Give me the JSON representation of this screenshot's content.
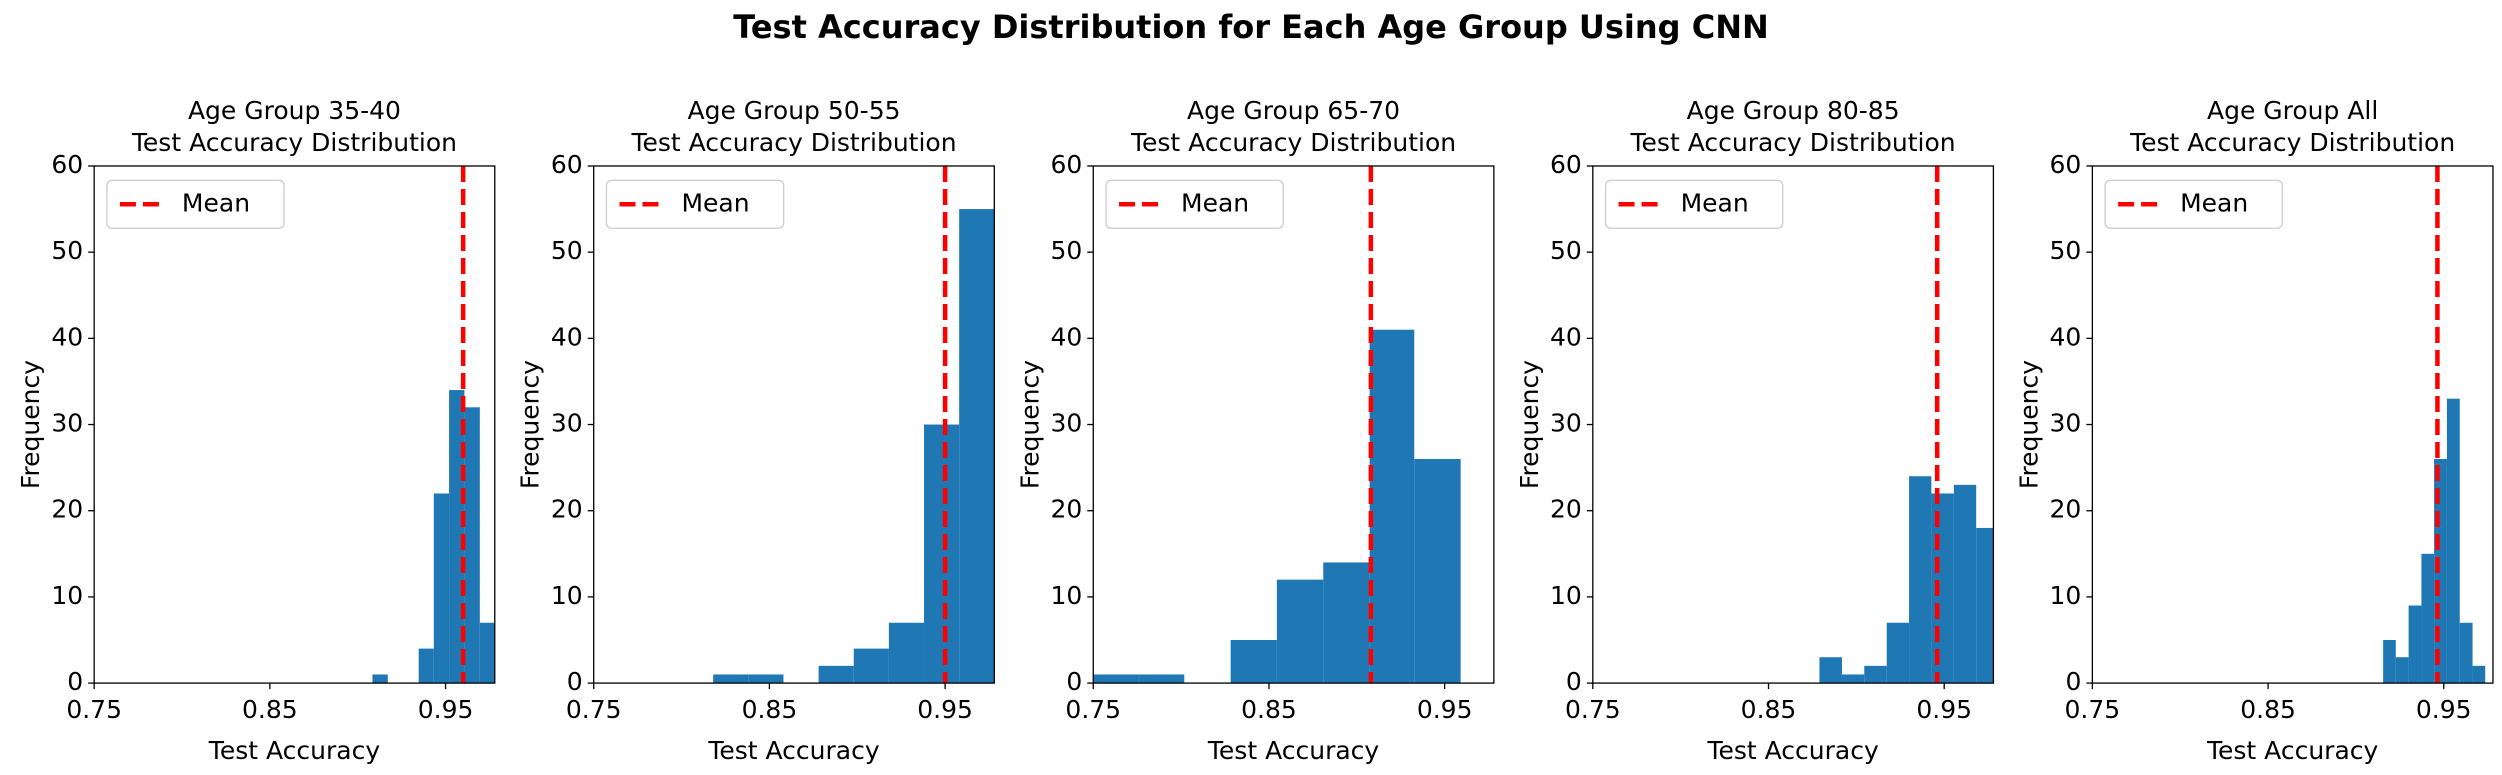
{
  "title": "Test Accuracy Distribution for Each Age Group Using CNN",
  "chart_data": [
    {
      "type": "histogram",
      "title": "Age Group 35-40\nTest Accuracy Distribution",
      "x_label": "Test Accuracy",
      "y_label": "Frequency",
      "bins": [
        0.9084,
        0.9171,
        0.9258,
        0.9347,
        0.9433,
        0.952,
        0.9607,
        0.9695,
        0.9782
      ],
      "values": [
        1,
        0,
        0,
        4,
        22,
        34,
        32,
        7
      ],
      "color": "#1f77b4",
      "mean_line": {
        "name": "Mean",
        "value": 0.96,
        "color": "#ff0000"
      },
      "xlim": [
        0.75,
        0.978
      ],
      "xticks": [
        0.75,
        0.85,
        0.95
      ],
      "ylim": [
        0,
        60
      ],
      "yticks": [
        0,
        10,
        20,
        30,
        40,
        50,
        60
      ],
      "legend": "upper left"
    },
    {
      "type": "histogram",
      "title": "Age Group 50-55\nTest Accuracy Distribution",
      "x_label": "Test Accuracy",
      "y_label": "Frequency",
      "bins": [
        0.818,
        0.838,
        0.858,
        0.878,
        0.898,
        0.918,
        0.938,
        0.958,
        0.978
      ],
      "values": [
        1,
        1,
        0,
        2,
        4,
        7,
        30,
        55
      ],
      "color": "#1f77b4",
      "mean_line": {
        "name": "Mean",
        "value": 0.95,
        "color": "#ff0000"
      },
      "xlim": [
        0.75,
        0.978
      ],
      "xticks": [
        0.75,
        0.85,
        0.95
      ],
      "ylim": [
        0,
        60
      ],
      "yticks": [
        0,
        10,
        20,
        30,
        40,
        50,
        60
      ],
      "legend": "upper left"
    },
    {
      "type": "histogram",
      "title": "Age Group 65-70\nTest Accuracy Distribution",
      "x_label": "Test Accuracy",
      "y_label": "Frequency",
      "bins": [
        0.75,
        0.7764,
        0.8018,
        0.8282,
        0.8545,
        0.8809,
        0.9073,
        0.9327,
        0.9591
      ],
      "values": [
        1,
        1,
        0,
        5,
        12,
        14,
        41,
        26
      ],
      "color": "#1f77b4",
      "mean_line": {
        "name": "Mean",
        "value": 0.908,
        "color": "#ff0000"
      },
      "xlim": [
        0.75,
        0.978
      ],
      "xticks": [
        0.75,
        0.85,
        0.95
      ],
      "ylim": [
        0,
        60
      ],
      "yticks": [
        0,
        10,
        20,
        30,
        40,
        50,
        60
      ],
      "legend": "upper left"
    },
    {
      "type": "histogram",
      "title": "Age Group 80-85\nTest Accuracy Distribution",
      "x_label": "Test Accuracy",
      "y_label": "Frequency",
      "bins": [
        0.879,
        0.8918,
        0.9045,
        0.9173,
        0.93,
        0.9427,
        0.9555,
        0.9682,
        0.9809
      ],
      "values": [
        3,
        1,
        2,
        7,
        24,
        22,
        23,
        18
      ],
      "color": "#1f77b4",
      "mean_line": {
        "name": "Mean",
        "value": 0.946,
        "color": "#ff0000"
      },
      "xlim": [
        0.75,
        0.978
      ],
      "xticks": [
        0.75,
        0.85,
        0.95
      ],
      "ylim": [
        0,
        60
      ],
      "yticks": [
        0,
        10,
        20,
        30,
        40,
        50,
        60
      ],
      "legend": "upper left"
    },
    {
      "type": "histogram",
      "title": "Age Group All\nTest Accuracy Distribution",
      "x_label": "Test Accuracy",
      "y_label": "Frequency",
      "bins": [
        0.9155,
        0.9227,
        0.93,
        0.9373,
        0.9445,
        0.9518,
        0.9591,
        0.9664,
        0.9736
      ],
      "values": [
        5,
        3,
        9,
        15,
        26,
        33,
        7,
        2
      ],
      "color": "#1f77b4",
      "mean_line": {
        "name": "Mean",
        "value": 0.9464,
        "color": "#ff0000"
      },
      "xlim": [
        0.75,
        0.978
      ],
      "xticks": [
        0.75,
        0.85,
        0.95
      ],
      "ylim": [
        0,
        60
      ],
      "yticks": [
        0,
        10,
        20,
        30,
        40,
        50,
        60
      ],
      "legend": "upper left"
    }
  ]
}
